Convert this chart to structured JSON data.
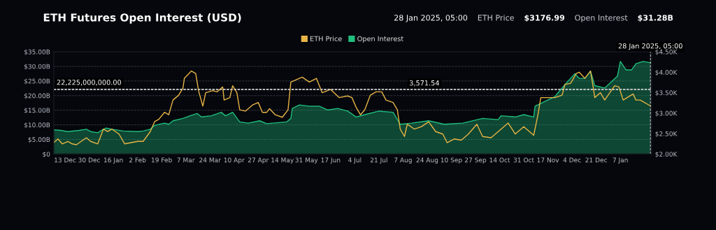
{
  "chart_data": {
    "type": "area",
    "title": "ETH Futures Open Interest (USD)",
    "annotations": [
      "28 Jan 2025, 05:00",
      "ETH Price",
      "$3176.99",
      "Open Interest",
      "$31.28B"
    ],
    "xlim": [
      "2023-12-05",
      "2025-01-29"
    ],
    "xticks": [
      {
        "value": "2023-12-13",
        "label": "13 Dec"
      },
      {
        "value": "2023-12-30",
        "label": "30 Dec"
      },
      {
        "value": "2024-01-16",
        "label": "16 Jan"
      },
      {
        "value": "2024-02-02",
        "label": "2 Feb"
      },
      {
        "value": "2024-02-19",
        "label": "19 Feb"
      },
      {
        "value": "2024-03-07",
        "label": "7 Mar"
      },
      {
        "value": "2024-03-24",
        "label": "24 Mar"
      },
      {
        "value": "2024-04-10",
        "label": "10 Apr"
      },
      {
        "value": "2024-04-27",
        "label": "27 Apr"
      },
      {
        "value": "2024-05-14",
        "label": "14 May"
      },
      {
        "value": "2024-05-31",
        "label": "31 May"
      },
      {
        "value": "2024-06-17",
        "label": "17 Jun"
      },
      {
        "value": "2024-07-04",
        "label": "4 Jul"
      },
      {
        "value": "2024-07-21",
        "label": "21 Jul"
      },
      {
        "value": "2024-08-07",
        "label": "7 Aug"
      },
      {
        "value": "2024-08-24",
        "label": "24 Aug"
      },
      {
        "value": "2024-09-10",
        "label": "10 Sep"
      },
      {
        "value": "2024-09-27",
        "label": "27 Sep"
      },
      {
        "value": "2024-10-14",
        "label": "14 Oct"
      },
      {
        "value": "2024-10-31",
        "label": "31 Oct"
      },
      {
        "value": "2024-11-17",
        "label": "17 Nov"
      },
      {
        "value": "2024-12-04",
        "label": "4 Dec"
      },
      {
        "value": "2024-12-21",
        "label": "21 Dec"
      },
      {
        "value": "2025-01-07",
        "label": "7 Jan"
      }
    ],
    "ylim": [
      0,
      35
    ],
    "yticks": [
      {
        "value": 0,
        "label": "$0"
      },
      {
        "value": 5,
        "label": "$5.00B"
      },
      {
        "value": 10,
        "label": "$10.00B"
      },
      {
        "value": 15,
        "label": "$15.00B"
      },
      {
        "value": 20,
        "label": "$20.00B"
      },
      {
        "value": 25,
        "label": "$25.00B"
      },
      {
        "value": 30,
        "label": "$30.00B"
      },
      {
        "value": 35,
        "label": "$35.00B"
      }
    ],
    "y2lim": [
      2000,
      4500
    ],
    "y2ticks": [
      {
        "value": 2000,
        "label": "$2.00K"
      },
      {
        "value": 2500,
        "label": "$2.50K"
      },
      {
        "value": 3000,
        "label": "$3.00K"
      },
      {
        "value": 3500,
        "label": "$3.50K"
      },
      {
        "value": 4000,
        "label": "$4.00K"
      },
      {
        "value": 4500,
        "label": "$4.50K"
      }
    ],
    "grid": "y",
    "legend": "top",
    "ref_lines": [
      {
        "axis": "y",
        "value": 22.225,
        "label": "22,225,000,000.00",
        "line_style": "dashed"
      },
      {
        "axis": "y2",
        "value": 3571.54,
        "label": "3,571.54",
        "line_style": "dashed"
      },
      {
        "axis": "x",
        "value": "2025-01-28T05:00",
        "label": "28 Jan 2025, 05:00",
        "line_style": "dashed"
      }
    ],
    "series": [
      {
        "name": "Open Interest",
        "color": "#1fbf7f",
        "x": [
          "2023-12-05",
          "2023-12-10",
          "2023-12-15",
          "2023-12-23",
          "2023-12-28",
          "2023-12-31",
          "2024-01-05",
          "2024-01-09",
          "2024-01-11",
          "2024-01-15",
          "2024-01-23",
          "2024-02-02",
          "2024-02-06",
          "2024-02-11",
          "2024-02-14",
          "2024-02-21",
          "2024-02-24",
          "2024-02-27",
          "2024-03-05",
          "2024-03-10",
          "2024-03-15",
          "2024-03-18",
          "2024-03-25",
          "2024-04-01",
          "2024-04-04",
          "2024-04-09",
          "2024-04-14",
          "2024-04-20",
          "2024-04-28",
          "2024-05-03",
          "2024-05-17",
          "2024-05-20",
          "2024-05-21",
          "2024-05-26",
          "2024-06-02",
          "2024-06-09",
          "2024-06-15",
          "2024-06-22",
          "2024-06-29",
          "2024-07-05",
          "2024-07-11",
          "2024-07-21",
          "2024-07-31",
          "2024-08-05",
          "2024-08-13",
          "2024-08-25",
          "2024-09-05",
          "2024-09-18",
          "2024-10-02",
          "2024-10-13",
          "2024-10-15",
          "2024-10-25",
          "2024-10-31",
          "2024-11-07",
          "2024-11-08",
          "2024-11-22",
          "2024-11-29",
          "2024-12-06",
          "2024-12-09",
          "2024-12-13",
          "2024-12-17",
          "2024-12-20",
          "2024-12-27",
          "2025-01-05",
          "2025-01-07",
          "2025-01-11",
          "2025-01-15",
          "2025-01-18",
          "2025-01-23",
          "2025-01-28T05:00"
        ],
        "values": [
          8.3,
          8.1,
          7.7,
          8.1,
          8.5,
          7.7,
          7.3,
          8.5,
          8.9,
          8.5,
          7.9,
          7.7,
          7.9,
          8.5,
          9.8,
          10.6,
          10.2,
          11.4,
          12.2,
          13.1,
          13.9,
          12.7,
          13.1,
          14.3,
          13.1,
          14.3,
          11.0,
          10.6,
          11.4,
          10.4,
          11.0,
          12.2,
          15.6,
          16.8,
          16.4,
          16.4,
          15.1,
          15.6,
          14.7,
          12.7,
          13.5,
          14.7,
          14.3,
          10.2,
          10.6,
          11.4,
          10.2,
          10.6,
          12.2,
          11.8,
          13.1,
          12.7,
          13.5,
          12.7,
          16.4,
          19.7,
          23.8,
          27.5,
          25.9,
          25.9,
          28.4,
          23.4,
          22.6,
          26.7,
          31.7,
          28.8,
          28.8,
          30.9,
          31.7,
          31.28
        ]
      },
      {
        "name": "ETH Price",
        "type": "line",
        "axis": "y2",
        "color": "#e8b445",
        "x": [
          "2023-12-05",
          "2023-12-08",
          "2023-12-11",
          "2023-12-15",
          "2023-12-18",
          "2023-12-21",
          "2023-12-28",
          "2023-12-31",
          "2024-01-05",
          "2024-01-09",
          "2024-01-12",
          "2024-01-15",
          "2024-01-20",
          "2024-01-24",
          "2024-02-02",
          "2024-02-06",
          "2024-02-11",
          "2024-02-14",
          "2024-02-17",
          "2024-02-21",
          "2024-02-24",
          "2024-02-27",
          "2024-03-02",
          "2024-03-05",
          "2024-03-06",
          "2024-03-11",
          "2024-03-14",
          "2024-03-16",
          "2024-03-19",
          "2024-03-21",
          "2024-03-26",
          "2024-03-29",
          "2024-04-02",
          "2024-04-03",
          "2024-04-07",
          "2024-04-09",
          "2024-04-12",
          "2024-04-14",
          "2024-04-18",
          "2024-04-23",
          "2024-04-27",
          "2024-04-30",
          "2024-05-03",
          "2024-05-05",
          "2024-05-09",
          "2024-05-14",
          "2024-05-18",
          "2024-05-20",
          "2024-05-24",
          "2024-05-28",
          "2024-06-02",
          "2024-06-07",
          "2024-06-11",
          "2024-06-17",
          "2024-06-23",
          "2024-06-29",
          "2024-07-02",
          "2024-07-05",
          "2024-07-08",
          "2024-07-11",
          "2024-07-15",
          "2024-07-19",
          "2024-07-23",
          "2024-07-26",
          "2024-07-31",
          "2024-08-03",
          "2024-08-05",
          "2024-08-08",
          "2024-08-10",
          "2024-08-15",
          "2024-08-20",
          "2024-08-25",
          "2024-08-30",
          "2024-09-04",
          "2024-09-07",
          "2024-09-12",
          "2024-09-17",
          "2024-09-22",
          "2024-09-28",
          "2024-10-02",
          "2024-10-08",
          "2024-10-13",
          "2024-10-20",
          "2024-10-25",
          "2024-10-31",
          "2024-11-07",
          "2024-11-10",
          "2024-11-12",
          "2024-11-22",
          "2024-11-27",
          "2024-11-29",
          "2024-12-03",
          "2024-12-07",
          "2024-12-09",
          "2024-12-13",
          "2024-12-17",
          "2024-12-19",
          "2024-12-20",
          "2024-12-24",
          "2024-12-27",
          "2025-01-03",
          "2025-01-06",
          "2025-01-09",
          "2025-01-16",
          "2025-01-18",
          "2025-01-21",
          "2025-01-28T05:00"
        ],
        "values": [
          2280,
          2370,
          2250,
          2310,
          2250,
          2230,
          2400,
          2310,
          2250,
          2610,
          2550,
          2610,
          2490,
          2250,
          2310,
          2310,
          2550,
          2790,
          2850,
          3020,
          2960,
          3320,
          3440,
          3610,
          3850,
          4030,
          3970,
          3550,
          3170,
          3500,
          3550,
          3520,
          3640,
          3320,
          3380,
          3670,
          3500,
          3080,
          3050,
          3200,
          3260,
          3020,
          3020,
          3110,
          2960,
          2900,
          3080,
          3760,
          3820,
          3880,
          3760,
          3850,
          3500,
          3580,
          3380,
          3420,
          3380,
          3140,
          2960,
          3080,
          3440,
          3520,
          3520,
          3320,
          3260,
          3080,
          2610,
          2430,
          2730,
          2610,
          2670,
          2790,
          2550,
          2490,
          2280,
          2370,
          2340,
          2490,
          2730,
          2430,
          2400,
          2550,
          2760,
          2490,
          2670,
          2460,
          2960,
          3380,
          3380,
          3440,
          3700,
          3730,
          3970,
          4000,
          3850,
          4030,
          3610,
          3380,
          3500,
          3320,
          3670,
          3640,
          3320,
          3470,
          3320,
          3320,
          3176.99
        ]
      }
    ]
  }
}
